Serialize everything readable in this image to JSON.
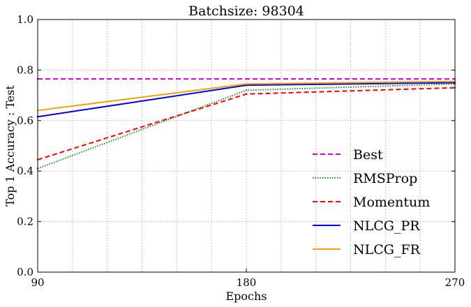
{
  "chart_data": {
    "type": "line",
    "title": "Batchsize: 98304",
    "xlabel": "Epochs",
    "ylabel": "Top 1 Accuracy : Test",
    "x": [
      90,
      180,
      270
    ],
    "xlim": [
      90,
      270
    ],
    "ylim": [
      0.0,
      1.0
    ],
    "xticks": [
      "90",
      "180",
      "270"
    ],
    "yticks": [
      "0.0",
      "0.2",
      "0.4",
      "0.6",
      "0.8",
      "1.0"
    ],
    "grid": true,
    "legend_position": "lower-right",
    "series": [
      {
        "name": "Best",
        "values": [
          0.765,
          0.765,
          0.765
        ],
        "color": "#cc00cc",
        "style": "dashed"
      },
      {
        "name": "RMSProp",
        "values": [
          0.41,
          0.72,
          0.745
        ],
        "color": "#228b22",
        "style": "dotted"
      },
      {
        "name": "Momentum",
        "values": [
          0.445,
          0.705,
          0.73
        ],
        "color": "#ff0000",
        "style": "dashed"
      },
      {
        "name": "NLCG_PR",
        "values": [
          0.615,
          0.74,
          0.75
        ],
        "color": "#0000ee",
        "style": "solid"
      },
      {
        "name": "NLCG_FR",
        "values": [
          0.64,
          0.745,
          0.755
        ],
        "color": "#f5a000",
        "style": "solid"
      }
    ]
  }
}
